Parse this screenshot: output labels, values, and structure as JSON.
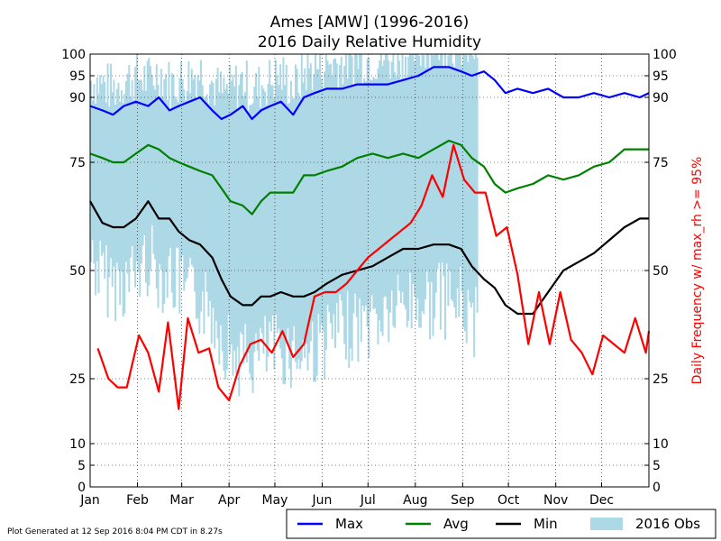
{
  "chart_data": {
    "type": "line",
    "title": "Ames [AMW] (1996-2016)",
    "subtitle": "2016 Daily Relative Humidity",
    "ylabel_right": "Daily Frequency w/ max_rh >= 95%",
    "footer": "Plot Generated at 12 Sep 2016 8:04 PM CDT in 8.27s",
    "xlim": [
      0,
      366
    ],
    "ylim": [
      0,
      100
    ],
    "grid": true,
    "legend_position": "bottom-right",
    "months": [
      {
        "label": "Jan",
        "day": 0
      },
      {
        "label": "Feb",
        "day": 31
      },
      {
        "label": "Mar",
        "day": 60
      },
      {
        "label": "Apr",
        "day": 91
      },
      {
        "label": "May",
        "day": 121
      },
      {
        "label": "Jun",
        "day": 152
      },
      {
        "label": "Jul",
        "day": 182
      },
      {
        "label": "Aug",
        "day": 213
      },
      {
        "label": "Sep",
        "day": 244
      },
      {
        "label": "Oct",
        "day": 274
      },
      {
        "label": "Nov",
        "day": 305
      },
      {
        "label": "Dec",
        "day": 335
      }
    ],
    "yticks_left": [
      0,
      5,
      10,
      25,
      50,
      75,
      90,
      95,
      100
    ],
    "yticks_right": [
      0,
      5,
      10,
      25,
      50,
      75,
      90,
      95,
      100
    ],
    "series": [
      {
        "name": "Max",
        "color": "#0000ff",
        "points": [
          [
            0,
            88
          ],
          [
            8,
            87
          ],
          [
            15,
            86
          ],
          [
            22,
            88
          ],
          [
            30,
            89
          ],
          [
            38,
            88
          ],
          [
            45,
            90
          ],
          [
            52,
            87
          ],
          [
            58,
            88
          ],
          [
            65,
            89
          ],
          [
            72,
            90
          ],
          [
            80,
            87
          ],
          [
            86,
            85
          ],
          [
            92,
            86
          ],
          [
            100,
            88
          ],
          [
            106,
            85
          ],
          [
            112,
            87
          ],
          [
            118,
            88
          ],
          [
            125,
            89
          ],
          [
            133,
            86
          ],
          [
            140,
            90
          ],
          [
            147,
            91
          ],
          [
            155,
            92
          ],
          [
            165,
            92
          ],
          [
            175,
            93
          ],
          [
            185,
            93
          ],
          [
            195,
            93
          ],
          [
            205,
            94
          ],
          [
            215,
            95
          ],
          [
            225,
            97
          ],
          [
            235,
            97
          ],
          [
            243,
            96
          ],
          [
            250,
            95
          ],
          [
            258,
            96
          ],
          [
            265,
            94
          ],
          [
            272,
            91
          ],
          [
            280,
            92
          ],
          [
            290,
            91
          ],
          [
            300,
            92
          ],
          [
            310,
            90
          ],
          [
            320,
            90
          ],
          [
            330,
            91
          ],
          [
            340,
            90
          ],
          [
            350,
            91
          ],
          [
            360,
            90
          ],
          [
            366,
            91
          ]
        ]
      },
      {
        "name": "Avg",
        "color": "#008000",
        "points": [
          [
            0,
            77
          ],
          [
            8,
            76
          ],
          [
            15,
            75
          ],
          [
            22,
            75
          ],
          [
            30,
            77
          ],
          [
            38,
            79
          ],
          [
            45,
            78
          ],
          [
            52,
            76
          ],
          [
            58,
            75
          ],
          [
            65,
            74
          ],
          [
            72,
            73
          ],
          [
            80,
            72
          ],
          [
            86,
            69
          ],
          [
            92,
            66
          ],
          [
            100,
            65
          ],
          [
            106,
            63
          ],
          [
            112,
            66
          ],
          [
            118,
            68
          ],
          [
            125,
            68
          ],
          [
            133,
            68
          ],
          [
            140,
            72
          ],
          [
            147,
            72
          ],
          [
            155,
            73
          ],
          [
            165,
            74
          ],
          [
            175,
            76
          ],
          [
            185,
            77
          ],
          [
            195,
            76
          ],
          [
            205,
            77
          ],
          [
            215,
            76
          ],
          [
            225,
            78
          ],
          [
            235,
            80
          ],
          [
            243,
            79
          ],
          [
            250,
            76
          ],
          [
            258,
            74
          ],
          [
            265,
            70
          ],
          [
            272,
            68
          ],
          [
            280,
            69
          ],
          [
            290,
            70
          ],
          [
            300,
            72
          ],
          [
            310,
            71
          ],
          [
            320,
            72
          ],
          [
            330,
            74
          ],
          [
            340,
            75
          ],
          [
            350,
            78
          ],
          [
            360,
            78
          ],
          [
            366,
            78
          ]
        ]
      },
      {
        "name": "Min",
        "color": "#000000",
        "points": [
          [
            0,
            66
          ],
          [
            8,
            61
          ],
          [
            15,
            60
          ],
          [
            22,
            60
          ],
          [
            30,
            62
          ],
          [
            38,
            66
          ],
          [
            45,
            62
          ],
          [
            52,
            62
          ],
          [
            58,
            59
          ],
          [
            65,
            57
          ],
          [
            72,
            56
          ],
          [
            80,
            53
          ],
          [
            86,
            48
          ],
          [
            92,
            44
          ],
          [
            100,
            42
          ],
          [
            106,
            42
          ],
          [
            112,
            44
          ],
          [
            118,
            44
          ],
          [
            125,
            45
          ],
          [
            133,
            44
          ],
          [
            140,
            44
          ],
          [
            147,
            45
          ],
          [
            155,
            47
          ],
          [
            165,
            49
          ],
          [
            175,
            50
          ],
          [
            185,
            51
          ],
          [
            195,
            53
          ],
          [
            205,
            55
          ],
          [
            215,
            55
          ],
          [
            225,
            56
          ],
          [
            235,
            56
          ],
          [
            243,
            55
          ],
          [
            250,
            51
          ],
          [
            258,
            48
          ],
          [
            265,
            46
          ],
          [
            272,
            42
          ],
          [
            280,
            40
          ],
          [
            290,
            40
          ],
          [
            300,
            45
          ],
          [
            310,
            50
          ],
          [
            320,
            52
          ],
          [
            330,
            54
          ],
          [
            340,
            57
          ],
          [
            350,
            60
          ],
          [
            360,
            62
          ],
          [
            366,
            62
          ]
        ]
      },
      {
        "name": "Daily Frequency w/ max_rh >= 95%",
        "color": "#ff0000",
        "points": [
          [
            5,
            32
          ],
          [
            12,
            25
          ],
          [
            18,
            23
          ],
          [
            24,
            23
          ],
          [
            32,
            35
          ],
          [
            38,
            31
          ],
          [
            45,
            22
          ],
          [
            51,
            38
          ],
          [
            58,
            18
          ],
          [
            64,
            39
          ],
          [
            71,
            31
          ],
          [
            78,
            32
          ],
          [
            84,
            23
          ],
          [
            91,
            20
          ],
          [
            98,
            28
          ],
          [
            105,
            33
          ],
          [
            112,
            34
          ],
          [
            119,
            31
          ],
          [
            126,
            36
          ],
          [
            133,
            30
          ],
          [
            140,
            33
          ],
          [
            147,
            44
          ],
          [
            154,
            45
          ],
          [
            161,
            45
          ],
          [
            168,
            47
          ],
          [
            175,
            50
          ],
          [
            182,
            53
          ],
          [
            189,
            55
          ],
          [
            196,
            57
          ],
          [
            203,
            59
          ],
          [
            210,
            61
          ],
          [
            217,
            65
          ],
          [
            224,
            72
          ],
          [
            231,
            67
          ],
          [
            238,
            79
          ],
          [
            245,
            71
          ],
          [
            252,
            68
          ],
          [
            259,
            68
          ],
          [
            266,
            58
          ],
          [
            273,
            60
          ],
          [
            280,
            49
          ],
          [
            287,
            33
          ],
          [
            294,
            45
          ],
          [
            301,
            33
          ],
          [
            308,
            45
          ],
          [
            315,
            34
          ],
          [
            322,
            31
          ],
          [
            329,
            26
          ],
          [
            336,
            35
          ],
          [
            343,
            33
          ],
          [
            350,
            31
          ],
          [
            357,
            39
          ],
          [
            364,
            31
          ],
          [
            366,
            36
          ]
        ]
      }
    ],
    "obs_bars": {
      "name": "2016 Obs",
      "color": "#add8e6",
      "day_end": 254
    }
  },
  "legend": {
    "items": [
      {
        "label": "Max",
        "color": "#0000ff",
        "type": "line"
      },
      {
        "label": "Avg",
        "color": "#008000",
        "type": "line"
      },
      {
        "label": "Min",
        "color": "#000000",
        "type": "line"
      },
      {
        "label": "2016 Obs",
        "color": "#add8e6",
        "type": "patch"
      }
    ]
  }
}
